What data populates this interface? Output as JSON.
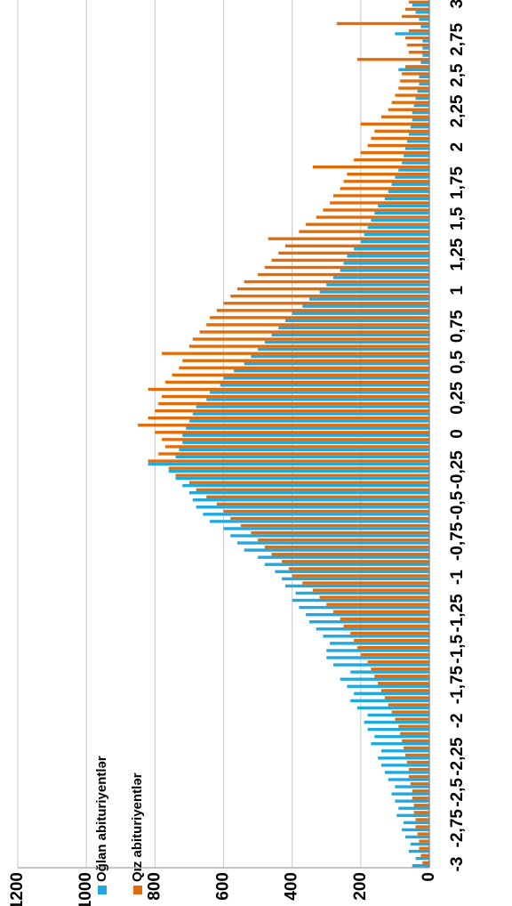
{
  "chart_data": {
    "type": "bar",
    "categories": [
      "-3",
      null,
      null,
      null,
      null,
      "-2,75",
      null,
      null,
      null,
      null,
      "-2,5",
      null,
      null,
      null,
      null,
      "-2,25",
      null,
      null,
      null,
      null,
      "-2",
      null,
      null,
      null,
      null,
      "-1,75",
      null,
      null,
      null,
      null,
      "-1,5",
      null,
      null,
      null,
      null,
      "-1,25",
      null,
      null,
      null,
      null,
      "-1",
      null,
      null,
      null,
      null,
      "-0,75",
      null,
      null,
      null,
      null,
      "-0,5",
      null,
      null,
      null,
      null,
      "-0,25",
      null,
      null,
      null,
      null,
      "0",
      null,
      null,
      null,
      null,
      "0,25",
      null,
      null,
      null,
      null,
      "0,5",
      null,
      null,
      null,
      null,
      "0,75",
      null,
      null,
      null,
      null,
      "1",
      null,
      null,
      null,
      null,
      "1,25",
      null,
      null,
      null,
      null,
      "1,5",
      null,
      null,
      null,
      null,
      "1,75",
      null,
      null,
      null,
      null,
      "2",
      null,
      null,
      null,
      null,
      "2,25",
      null,
      null,
      null,
      null,
      "2,5",
      null,
      null,
      null,
      null,
      "2,75",
      null,
      null,
      null,
      null,
      "3"
    ],
    "series": [
      {
        "name": "Oğlan abituriyentlər",
        "color": "#1fa9e1",
        "values": [
          50,
          40,
          60,
          55,
          70,
          80,
          75,
          95,
          90,
          100,
          110,
          100,
          120,
          130,
          140,
          150,
          140,
          170,
          160,
          180,
          190,
          180,
          210,
          230,
          220,
          240,
          260,
          230,
          280,
          300,
          300,
          290,
          310,
          330,
          350,
          360,
          380,
          400,
          390,
          420,
          430,
          450,
          480,
          500,
          540,
          560,
          580,
          600,
          640,
          660,
          680,
          690,
          700,
          720,
          740,
          760,
          820,
          740,
          730,
          720,
          720,
          710,
          700,
          690,
          680,
          650,
          640,
          610,
          600,
          570,
          540,
          520,
          500,
          480,
          460,
          440,
          420,
          400,
          370,
          350,
          320,
          300,
          280,
          260,
          250,
          240,
          220,
          200,
          190,
          180,
          170,
          160,
          150,
          130,
          120,
          110,
          100,
          90,
          80,
          75,
          70,
          65,
          60,
          55,
          50,
          50,
          45,
          40,
          35,
          30,
          30,
          90,
          25,
          20,
          20,
          20,
          100,
          25,
          30,
          40,
          50
        ]
      },
      {
        "name": "Qız abituriyentlər",
        "color": "#e36c0a",
        "values": [
          20,
          25,
          30,
          30,
          35,
          40,
          40,
          45,
          45,
          50,
          50,
          55,
          60,
          60,
          65,
          70,
          75,
          80,
          85,
          90,
          100,
          110,
          120,
          130,
          140,
          150,
          160,
          170,
          180,
          200,
          210,
          220,
          230,
          250,
          260,
          280,
          300,
          320,
          340,
          370,
          400,
          410,
          430,
          460,
          480,
          500,
          520,
          550,
          580,
          600,
          620,
          650,
          680,
          700,
          740,
          760,
          820,
          790,
          770,
          780,
          800,
          850,
          820,
          800,
          790,
          780,
          820,
          770,
          750,
          730,
          720,
          780,
          700,
          690,
          670,
          650,
          640,
          620,
          600,
          580,
          560,
          540,
          500,
          480,
          460,
          440,
          420,
          470,
          380,
          360,
          330,
          310,
          290,
          280,
          260,
          250,
          240,
          340,
          220,
          200,
          180,
          170,
          160,
          200,
          140,
          120,
          110,
          100,
          90,
          85,
          80,
          70,
          210,
          60,
          65,
          70,
          60,
          270,
          80,
          70,
          60
        ]
      }
    ],
    "ylim": [
      0,
      1200
    ],
    "yticks": [
      0,
      200,
      400,
      600,
      800,
      1000,
      1200
    ],
    "grid": true,
    "legend": "top-left"
  }
}
